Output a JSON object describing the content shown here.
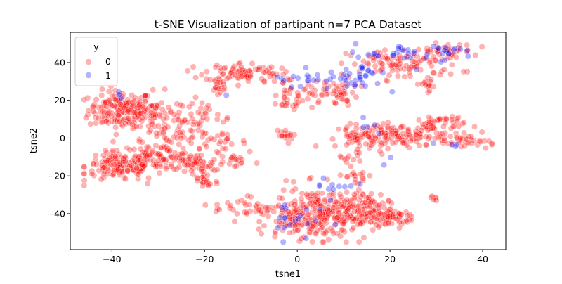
{
  "chart_data": {
    "type": "scatter",
    "title": "t-SNE Visualization of partipant n=7 PCA Dataset",
    "xlabel": "tsne1",
    "ylabel": "tsne2",
    "xlim": [
      -49,
      45
    ],
    "ylim": [
      -59,
      56
    ],
    "xticks": [
      -40,
      -20,
      0,
      20,
      40
    ],
    "yticks": [
      -40,
      -20,
      0,
      20,
      40
    ],
    "grid": false,
    "legend": {
      "title": "y",
      "placement": "top-left",
      "entries": [
        {
          "label": "0",
          "color": "#ff0000"
        },
        {
          "label": "1",
          "color": "#0000ff"
        }
      ]
    },
    "marker_alpha": 0.3,
    "series": [
      {
        "name": "0",
        "color": "#ff0000",
        "clusters": [
          {
            "cx": -38,
            "cy": 15,
            "sx": 3.5,
            "sy": 5,
            "n": 170
          },
          {
            "cx": -31,
            "cy": 12,
            "sx": 3,
            "sy": 6,
            "n": 60
          },
          {
            "cx": -26,
            "cy": 5,
            "sx": 3,
            "sy": 5,
            "n": 40
          },
          {
            "cx": -20,
            "cy": 10,
            "sx": 3,
            "sy": 6,
            "n": 35
          },
          {
            "cx": -17,
            "cy": -2,
            "sx": 3,
            "sy": 2,
            "n": 20
          },
          {
            "cx": -38,
            "cy": -15,
            "sx": 4,
            "sy": 4,
            "n": 140
          },
          {
            "cx": -30,
            "cy": -10,
            "sx": 4,
            "sy": 3.5,
            "n": 90
          },
          {
            "cx": -22,
            "cy": -14,
            "sx": 2.5,
            "sy": 3,
            "n": 55
          },
          {
            "cx": -20,
            "cy": -23,
            "sx": 1.5,
            "sy": 2.5,
            "n": 20
          },
          {
            "cx": -13,
            "cy": -12,
            "sx": 2,
            "sy": 2,
            "n": 18
          },
          {
            "cx": -12,
            "cy": 35,
            "sx": 4,
            "sy": 2.5,
            "n": 75
          },
          {
            "cx": -5,
            "cy": 32,
            "sx": 2,
            "sy": 2,
            "n": 12
          },
          {
            "cx": -17,
            "cy": 27,
            "sx": 1,
            "sy": 2.5,
            "n": 14
          },
          {
            "cx": -3,
            "cy": 19,
            "sx": 2,
            "sy": 2,
            "n": 18
          },
          {
            "cx": -3,
            "cy": 1,
            "sx": 1,
            "sy": 2,
            "n": 16
          },
          {
            "cx": 5,
            "cy": 24,
            "sx": 4,
            "sy": 3.5,
            "n": 55
          },
          {
            "cx": 9,
            "cy": 24,
            "sx": 1.5,
            "sy": 4,
            "n": 12
          },
          {
            "cx": 23,
            "cy": 39,
            "sx": 6,
            "sy": 4,
            "n": 100
          },
          {
            "cx": 32,
            "cy": 46,
            "sx": 3,
            "sy": 2,
            "n": 35
          },
          {
            "cx": 28,
            "cy": 29,
            "sx": 1.5,
            "sy": 2,
            "n": 14
          },
          {
            "cx": 21,
            "cy": 1,
            "sx": 6,
            "sy": 3,
            "n": 140
          },
          {
            "cx": 30,
            "cy": 7,
            "sx": 3,
            "sy": 3,
            "n": 55
          },
          {
            "cx": 37,
            "cy": -2,
            "sx": 2.5,
            "sy": 2,
            "n": 30
          },
          {
            "cx": 13,
            "cy": 0,
            "sx": 2,
            "sy": 2.5,
            "n": 22
          },
          {
            "cx": 11,
            "cy": -10,
            "sx": 1.5,
            "sy": 2,
            "n": 10
          },
          {
            "cx": 5,
            "cy": -40,
            "sx": 5,
            "sy": 7,
            "n": 240
          },
          {
            "cx": 12,
            "cy": -40,
            "sx": 3,
            "sy": 5,
            "n": 70
          },
          {
            "cx": 18,
            "cy": -40,
            "sx": 3,
            "sy": 4,
            "n": 70
          },
          {
            "cx": 22,
            "cy": -43,
            "sx": 1.5,
            "sy": 2,
            "n": 18
          },
          {
            "cx": 13,
            "cy": -20,
            "sx": 1.5,
            "sy": 1.5,
            "n": 14
          },
          {
            "cx": -12,
            "cy": -37,
            "sx": 3,
            "sy": 3,
            "n": 25
          },
          {
            "cx": -7,
            "cy": -37,
            "sx": 1.5,
            "sy": 2,
            "n": 10
          },
          {
            "cx": 29,
            "cy": -32,
            "sx": 1,
            "sy": 1,
            "n": 6
          },
          {
            "cx": -2,
            "cy": -42,
            "sx": 2.5,
            "sy": 6,
            "n": 40
          }
        ]
      },
      {
        "name": "1",
        "color": "#0000ff",
        "clusters": [
          {
            "cx": 24,
            "cy": 44,
            "sx": 6,
            "sy": 3,
            "n": 32
          },
          {
            "cx": 12,
            "cy": 31,
            "sx": 3,
            "sy": 3,
            "n": 26
          },
          {
            "cx": 32,
            "cy": 47,
            "sx": 3,
            "sy": 1.5,
            "n": 12
          },
          {
            "cx": 4,
            "cy": 30,
            "sx": 3,
            "sy": 2,
            "n": 10
          },
          {
            "cx": -2,
            "cy": 32,
            "sx": 1.5,
            "sy": 1,
            "n": 5
          },
          {
            "cx": 15,
            "cy": 35,
            "sx": 2,
            "sy": 2,
            "n": 8
          },
          {
            "cx": 0,
            "cy": -40,
            "sx": 3,
            "sy": 7,
            "n": 20
          },
          {
            "cx": 8,
            "cy": -25,
            "sx": 2.5,
            "sy": 3,
            "n": 10
          },
          {
            "cx": 15,
            "cy": 6,
            "sx": 1.5,
            "sy": 2,
            "n": 5
          },
          {
            "cx": 34,
            "cy": -3,
            "sx": 2,
            "sy": 1,
            "n": 4
          },
          {
            "cx": -38,
            "cy": 23,
            "sx": 1.5,
            "sy": 1,
            "n": 3
          },
          {
            "cx": -15,
            "cy": 24,
            "sx": 0.5,
            "sy": 0.5,
            "n": 1
          },
          {
            "cx": 20,
            "cy": -10,
            "sx": 3,
            "sy": 3,
            "n": 2
          }
        ]
      }
    ]
  }
}
